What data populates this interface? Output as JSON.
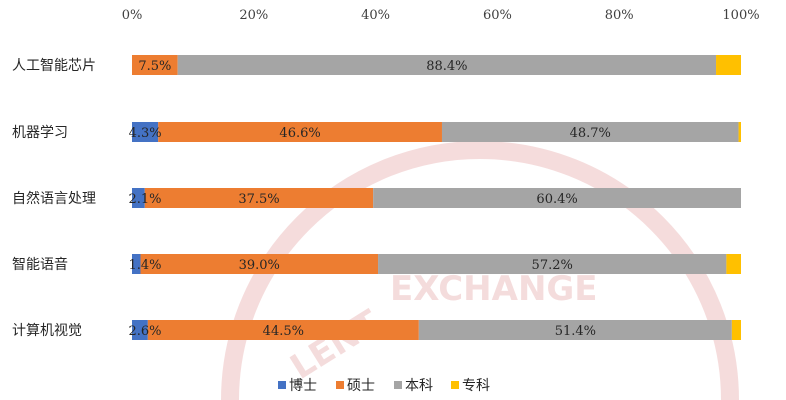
{
  "chart_data": {
    "type": "bar",
    "orientation": "horizontal",
    "stacked": "percent",
    "categories": [
      "人工智能芯片",
      "机器学习",
      "自然语言处理",
      "智能语音",
      "计算机视觉"
    ],
    "series": [
      {
        "name": "博士",
        "values": [
          0,
          4.3,
          2.1,
          1.4,
          2.6
        ],
        "labels": [
          "",
          "4.3%",
          "2.1%",
          "1.4%",
          "2.6%"
        ]
      },
      {
        "name": "硕士",
        "values": [
          7.5,
          46.6,
          37.5,
          39.0,
          44.5
        ],
        "labels": [
          "7.5%",
          "46.6%",
          "37.5%",
          "39.0%",
          "44.5%"
        ]
      },
      {
        "name": "本科",
        "values": [
          88.4,
          48.7,
          60.4,
          57.2,
          51.4
        ],
        "labels": [
          "88.4%",
          "48.7%",
          "60.4%",
          "57.2%",
          "51.4%"
        ]
      },
      {
        "name": "专科",
        "values": [
          4.1,
          0.4,
          0.0,
          2.4,
          1.5
        ],
        "labels": [
          "",
          "",
          "",
          "",
          ""
        ]
      }
    ],
    "xticks": [
      "0%",
      "20%",
      "40%",
      "60%",
      "80%",
      "100%"
    ],
    "xlim": [
      0,
      100
    ],
    "axis_position": "top",
    "grid": false,
    "legend_position": "bottom",
    "colors": [
      "#4472c4",
      "#ed7d31",
      "#a5a5a5",
      "#ffc000"
    ]
  }
}
